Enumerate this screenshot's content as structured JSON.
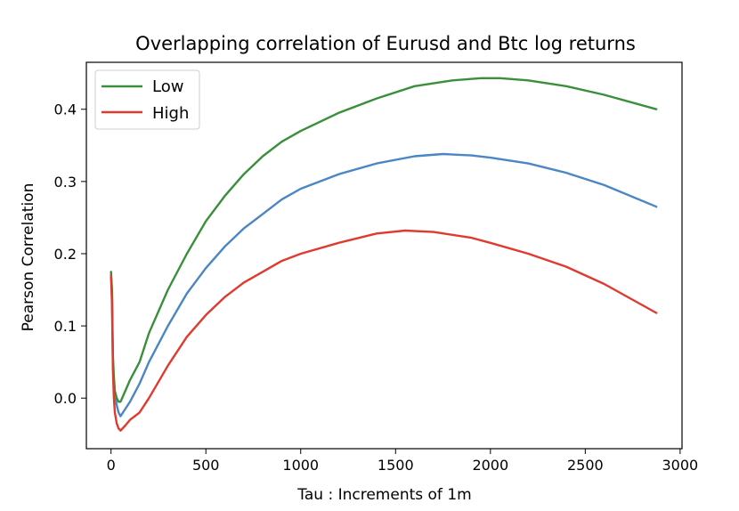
{
  "chart_data": {
    "type": "line",
    "title": "Overlapping correlation of Eurusd and Btc  log returns",
    "xlabel": "Tau : Increments of 1m",
    "ylabel": "Pearson Correlation",
    "xlim": [
      -130,
      3010
    ],
    "ylim": [
      -0.07,
      0.465
    ],
    "xticks": [
      0,
      500,
      1000,
      1500,
      2000,
      2500,
      3000
    ],
    "yticks": [
      0.0,
      0.1,
      0.2,
      0.3,
      0.4
    ],
    "xtick_labels": [
      "0",
      "500",
      "1000",
      "1500",
      "2000",
      "2500",
      "3000"
    ],
    "ytick_labels": [
      "0.0",
      "0.1",
      "0.2",
      "0.3",
      "0.4"
    ],
    "grid": false,
    "legend_position": "top-left",
    "legend_series": [
      "Low",
      "High"
    ],
    "series": [
      {
        "name": "",
        "color": "#4a86c4",
        "x": [
          0,
          5,
          10,
          15,
          20,
          30,
          40,
          50,
          75,
          100,
          150,
          200,
          300,
          400,
          500,
          600,
          700,
          800,
          900,
          1000,
          1200,
          1400,
          1600,
          1750,
          1900,
          2000,
          2200,
          2400,
          2600,
          2875
        ],
        "y": [
          0.17,
          0.14,
          0.05,
          0.02,
          0.005,
          -0.01,
          -0.02,
          -0.025,
          -0.015,
          -0.005,
          0.02,
          0.05,
          0.1,
          0.145,
          0.18,
          0.21,
          0.235,
          0.255,
          0.275,
          0.29,
          0.31,
          0.325,
          0.335,
          0.338,
          0.336,
          0.333,
          0.325,
          0.312,
          0.295,
          0.265
        ]
      },
      {
        "name": "Low",
        "color": "#3a8f3a",
        "x": [
          0,
          5,
          10,
          15,
          20,
          30,
          40,
          50,
          75,
          100,
          150,
          200,
          300,
          400,
          500,
          600,
          700,
          800,
          900,
          1000,
          1200,
          1400,
          1600,
          1800,
          1950,
          2050,
          2200,
          2400,
          2600,
          2875
        ],
        "y": [
          0.175,
          0.15,
          0.06,
          0.03,
          0.01,
          0.0,
          -0.005,
          -0.005,
          0.01,
          0.025,
          0.05,
          0.09,
          0.15,
          0.2,
          0.245,
          0.28,
          0.31,
          0.335,
          0.355,
          0.37,
          0.395,
          0.415,
          0.432,
          0.44,
          0.443,
          0.443,
          0.44,
          0.432,
          0.42,
          0.4
        ]
      },
      {
        "name": "High",
        "color": "#e03a2f",
        "x": [
          0,
          5,
          10,
          15,
          20,
          30,
          40,
          50,
          75,
          100,
          150,
          200,
          300,
          400,
          500,
          600,
          700,
          800,
          900,
          1000,
          1200,
          1400,
          1550,
          1700,
          1900,
          2000,
          2200,
          2400,
          2600,
          2875
        ],
        "y": [
          0.17,
          0.13,
          0.04,
          0.0,
          -0.02,
          -0.035,
          -0.042,
          -0.045,
          -0.038,
          -0.03,
          -0.02,
          0.0,
          0.045,
          0.085,
          0.115,
          0.14,
          0.16,
          0.175,
          0.19,
          0.2,
          0.215,
          0.228,
          0.232,
          0.23,
          0.222,
          0.215,
          0.2,
          0.182,
          0.158,
          0.118
        ]
      }
    ]
  }
}
